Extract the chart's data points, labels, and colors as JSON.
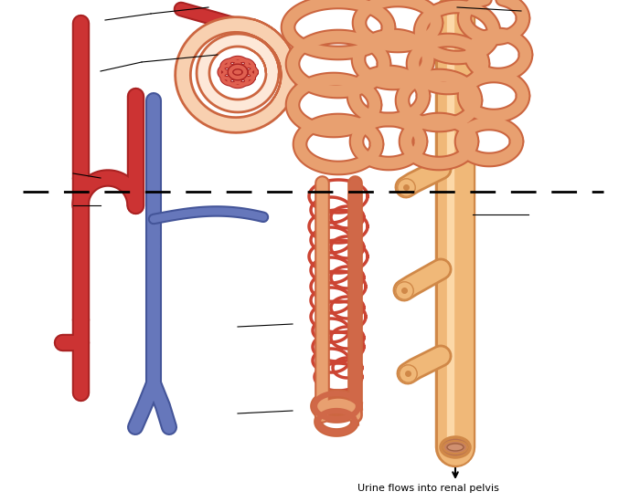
{
  "bg_color": "#ffffff",
  "text_bottom": "Urine flows into renal pelvis",
  "artery_color": "#cc3333",
  "artery_light": "#e86060",
  "vein_color": "#6677bb",
  "vein_light": "#8899cc",
  "tubule_color": "#e8a070",
  "tubule_outline": "#cc6640",
  "collecting_color": "#f0b878",
  "collecting_outline": "#d08848",
  "collecting_light": "#fcd8a8",
  "glom_fill": "#e06050",
  "glom_light": "#f09080",
  "capsule_fill": "#f8d0b0",
  "capsule_outline": "#cc6640",
  "red_cap_color": "#cc4433"
}
